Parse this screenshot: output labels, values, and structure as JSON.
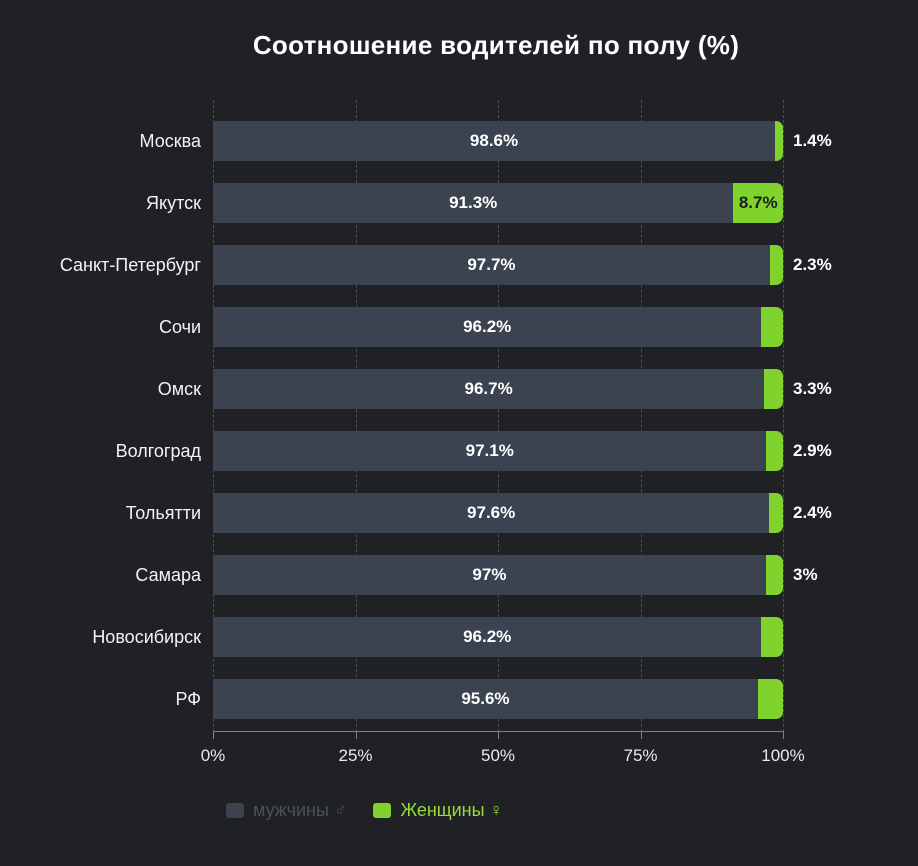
{
  "chart_data": {
    "type": "bar",
    "orientation": "horizontal",
    "stacked": true,
    "title": "Соотношение водителей по полу (%)",
    "xlabel": "",
    "ylabel": "",
    "xlim": [
      0,
      100
    ],
    "x_ticks": [
      "0%",
      "25%",
      "50%",
      "75%",
      "100%"
    ],
    "x_tick_positions": [
      0,
      25,
      50,
      75,
      100
    ],
    "grid": "vertical-dashed",
    "legend_position": "bottom",
    "categories": [
      "Москва",
      "Якутск",
      "Санкт-Петербург",
      "Сочи",
      "Омск",
      "Волгоград",
      "Тольятти",
      "Самара",
      "Новосибирск",
      "РФ"
    ],
    "series": [
      {
        "name": "мужчины ♂",
        "color": "#3b4250",
        "values": [
          98.6,
          91.3,
          97.7,
          96.2,
          96.7,
          97.1,
          97.6,
          97,
          96.2,
          95.6
        ],
        "labels": [
          "98.6%",
          "91.3%",
          "97.7%",
          "96.2%",
          "96.7%",
          "97.1%",
          "97.6%",
          "97%",
          "96.2%",
          "95.6%"
        ]
      },
      {
        "name": "Женщины ♀",
        "color": "#80d32c",
        "values": [
          1.4,
          8.7,
          2.3,
          3.8,
          3.3,
          2.9,
          2.4,
          3,
          3.8,
          4.4
        ],
        "labels": [
          "1.4%",
          "8.7%",
          "2.3%",
          "",
          "3.3%",
          "2.9%",
          "2.4%",
          "3%",
          "",
          ""
        ],
        "label_placement": [
          "outside",
          "inside",
          "outside",
          "none",
          "outside",
          "outside",
          "outside",
          "outside",
          "none",
          "none"
        ]
      }
    ]
  },
  "legend": {
    "items": [
      {
        "label": "мужчины ♂",
        "swatch_color": "#3b4250",
        "text_color": "#4a515e"
      },
      {
        "label": "Женщины ♀",
        "swatch_color": "#80d32c",
        "text_color": "#97dd3d"
      }
    ]
  },
  "colors": {
    "background": "#1f2124",
    "male_bar": "#3b4250",
    "female_bar": "#80d32c",
    "title_text": "#ffffff",
    "category_text": "#f2f3f5",
    "bar_value_text": "#ffffff",
    "female_inside_value_text": "#1b1d22",
    "tick_text": "#e9eaec",
    "gridline": "#4b5058",
    "axis_line": "#7b8089"
  }
}
